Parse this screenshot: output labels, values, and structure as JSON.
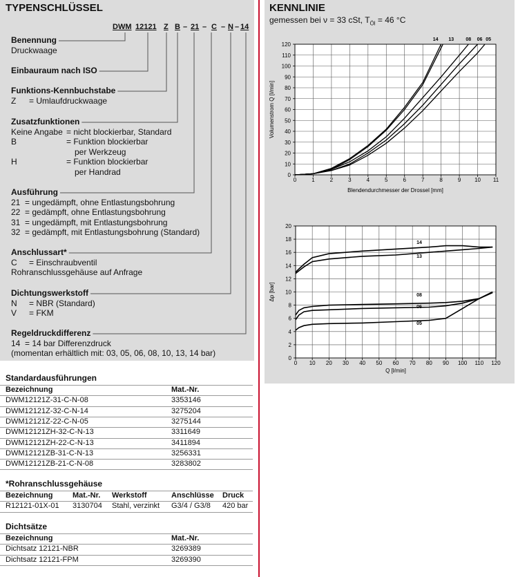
{
  "typenschluessel": {
    "title": "TYPENSCHLÜSSEL",
    "code": [
      "DWM",
      "12121",
      "Z",
      "B",
      "–",
      "21",
      "–",
      "C",
      "–",
      "N",
      "–",
      "14"
    ],
    "sections": [
      {
        "heading": "Benennung",
        "items": [
          {
            "text": "Druckwaage"
          }
        ]
      },
      {
        "heading": "Einbauraum nach ISO",
        "items": []
      },
      {
        "heading": "Funktions-Kennbuchstabe",
        "items": [
          {
            "key": "Z",
            "text": "= Umlaufdruckwaage"
          }
        ]
      },
      {
        "heading": "Zusatzfunktionen",
        "items": [
          {
            "key": "Keine Angabe",
            "text": "= nicht blockierbar, Standard"
          },
          {
            "key": "B",
            "text": "= Funktion blockierbar",
            "more": "per Werkzeug"
          },
          {
            "key": "H",
            "text": "= Funktion blockierbar",
            "more": "per Handrad"
          }
        ]
      },
      {
        "heading": "Ausführung",
        "items": [
          {
            "key": "21",
            "text": "= ungedämpft, ohne Entlastungsbohrung"
          },
          {
            "key": "22",
            "text": "= gedämpft, ohne Entlastungsbohrung"
          },
          {
            "key": "31",
            "text": "= ungedämpft, mit Entlastungsbohrung"
          },
          {
            "key": "32",
            "text": "= gedämpft, mit Entlastungsbohrung (Standard)"
          }
        ]
      },
      {
        "heading": "Anschlussart*",
        "items": [
          {
            "key": "C",
            "text": "= Einschraubventil"
          },
          {
            "text": "Rohranschlussgehäuse auf Anfrage"
          }
        ]
      },
      {
        "heading": "Dichtungswerkstoff",
        "items": [
          {
            "key": "N",
            "text": "= NBR (Standard)"
          },
          {
            "key": "V",
            "text": "= FKM"
          }
        ]
      },
      {
        "heading": "Regeldruckdifferenz",
        "items": [
          {
            "key": "14",
            "text": "= 14 bar Differenzdruck"
          },
          {
            "text": "(momentan erhältlich mit: 03, 05, 06, 08, 10, 13, 14 bar)"
          }
        ]
      }
    ]
  },
  "tables": [
    {
      "title": "Standardausführungen",
      "header": [
        "Bezeichnung",
        "Mat.-Nr."
      ],
      "rows": [
        [
          "DWM12121Z-31-C-N-08",
          "3353146"
        ],
        [
          "DWM12121Z-32-C-N-14",
          "3275204"
        ],
        [
          "DWM12121Z-22-C-N-05",
          "3275144"
        ],
        [
          "DWM12121ZH-32-C-N-13",
          "3311649"
        ],
        [
          "DWM12121ZH-22-C-N-13",
          "3411894"
        ],
        [
          "DWM12121ZB-31-C-N-13",
          "3256331"
        ],
        [
          "DWM12121ZB-21-C-N-08",
          "3283802"
        ]
      ]
    },
    {
      "title": "*Rohranschlussgehäuse",
      "header": [
        "Bezeichnung",
        "Mat.-Nr.",
        "Werkstoff",
        "Anschlüsse",
        "Druck"
      ],
      "rows": [
        [
          "R12121-01X-01",
          "3130704",
          "Stahl, verzinkt",
          "G3/4 / G3/8",
          "420 bar"
        ]
      ]
    },
    {
      "title": "Dichtsätze",
      "header": [
        "Bezeichnung",
        "Mat.-Nr."
      ],
      "rows": [
        [
          "Dichtsatz 12121-NBR",
          "3269389"
        ],
        [
          "Dichtsatz 12121-FPM",
          "3269390"
        ]
      ]
    }
  ],
  "kennlinie": {
    "title": "KENNLINIE",
    "subtitle": [
      "gemessen bei ν = 33 cSt, T",
      "Öl",
      " = 46 °C"
    ]
  },
  "chart_data": [
    {
      "type": "line",
      "x_label": "Blendendurchmesser der Drossel [mm]",
      "y_label": "Volumenstrom Q [l/min]",
      "xlim": [
        0,
        11
      ],
      "ylim": [
        0,
        120
      ],
      "xticks": [
        0,
        1,
        2,
        3,
        4,
        5,
        6,
        7,
        8,
        9,
        10,
        11
      ],
      "yticks": [
        0,
        10,
        20,
        30,
        40,
        50,
        60,
        70,
        80,
        90,
        100,
        110,
        120
      ],
      "grid": true,
      "series": [
        {
          "name": "14",
          "color": "#000000",
          "x": [
            0,
            1,
            2,
            3,
            4,
            5,
            6,
            7,
            8
          ],
          "values": [
            0,
            1,
            6,
            15,
            27,
            42,
            62,
            85,
            120
          ]
        },
        {
          "name": "13",
          "color": "#000000",
          "x": [
            0,
            1,
            2,
            3,
            4,
            5,
            6,
            7,
            8.1
          ],
          "values": [
            0,
            1,
            5,
            14,
            26,
            41,
            60,
            83,
            120
          ]
        },
        {
          "name": "08",
          "color": "#000000",
          "x": [
            0,
            1,
            2,
            3,
            4,
            5,
            6,
            7,
            8,
            9,
            9.5
          ],
          "values": [
            0,
            1,
            5,
            12,
            22,
            35,
            52,
            71,
            90,
            110,
            120
          ]
        },
        {
          "name": "06",
          "color": "#000000",
          "x": [
            0,
            1,
            2,
            3,
            4,
            5,
            6,
            7,
            8,
            9,
            10
          ],
          "values": [
            0,
            1,
            4,
            10,
            20,
            32,
            47,
            64,
            83,
            102,
            120
          ]
        },
        {
          "name": "05",
          "color": "#000000",
          "x": [
            0,
            1,
            2,
            3,
            4,
            5,
            6,
            7,
            8,
            9,
            10,
            10.4
          ],
          "values": [
            0,
            1,
            4,
            9,
            18,
            29,
            43,
            59,
            77,
            95,
            112,
            120
          ]
        }
      ]
    },
    {
      "type": "line",
      "x_label": "Q [l/min]",
      "y_label": "Δp [bar]",
      "xlim": [
        0,
        120
      ],
      "ylim": [
        0,
        20
      ],
      "xticks": [
        0,
        10,
        20,
        30,
        40,
        50,
        60,
        70,
        80,
        90,
        100,
        110,
        120
      ],
      "yticks": [
        0,
        2,
        4,
        6,
        8,
        10,
        12,
        14,
        16,
        18,
        20
      ],
      "grid": true,
      "x": [
        0,
        2,
        5,
        10,
        20,
        40,
        60,
        80,
        90,
        100,
        110,
        118
      ],
      "series": [
        {
          "name": "14",
          "color": "#000000",
          "values": [
            13,
            13.5,
            14.2,
            15.2,
            15.8,
            16.2,
            16.5,
            16.8,
            17,
            17,
            16.8,
            16.8
          ]
        },
        {
          "name": "13",
          "color": "#000000",
          "values": [
            12.8,
            13.2,
            13.8,
            14.6,
            15,
            15.4,
            15.6,
            16,
            16.2,
            16.4,
            16.6,
            16.8
          ]
        },
        {
          "name": "08",
          "color": "#000000",
          "values": [
            6.5,
            7.2,
            7.6,
            7.8,
            8,
            8.1,
            8.2,
            8.3,
            8.4,
            8.6,
            9,
            10
          ]
        },
        {
          "name": "06",
          "color": "#000000",
          "values": [
            5.8,
            6.5,
            7,
            7.2,
            7.3,
            7.5,
            7.6,
            7.7,
            7.9,
            8.3,
            9,
            9.9
          ]
        },
        {
          "name": "05",
          "color": "#000000",
          "values": [
            4.2,
            4.6,
            4.9,
            5.1,
            5.2,
            5.3,
            5.5,
            5.7,
            6,
            7.5,
            9,
            10
          ]
        }
      ]
    }
  ]
}
